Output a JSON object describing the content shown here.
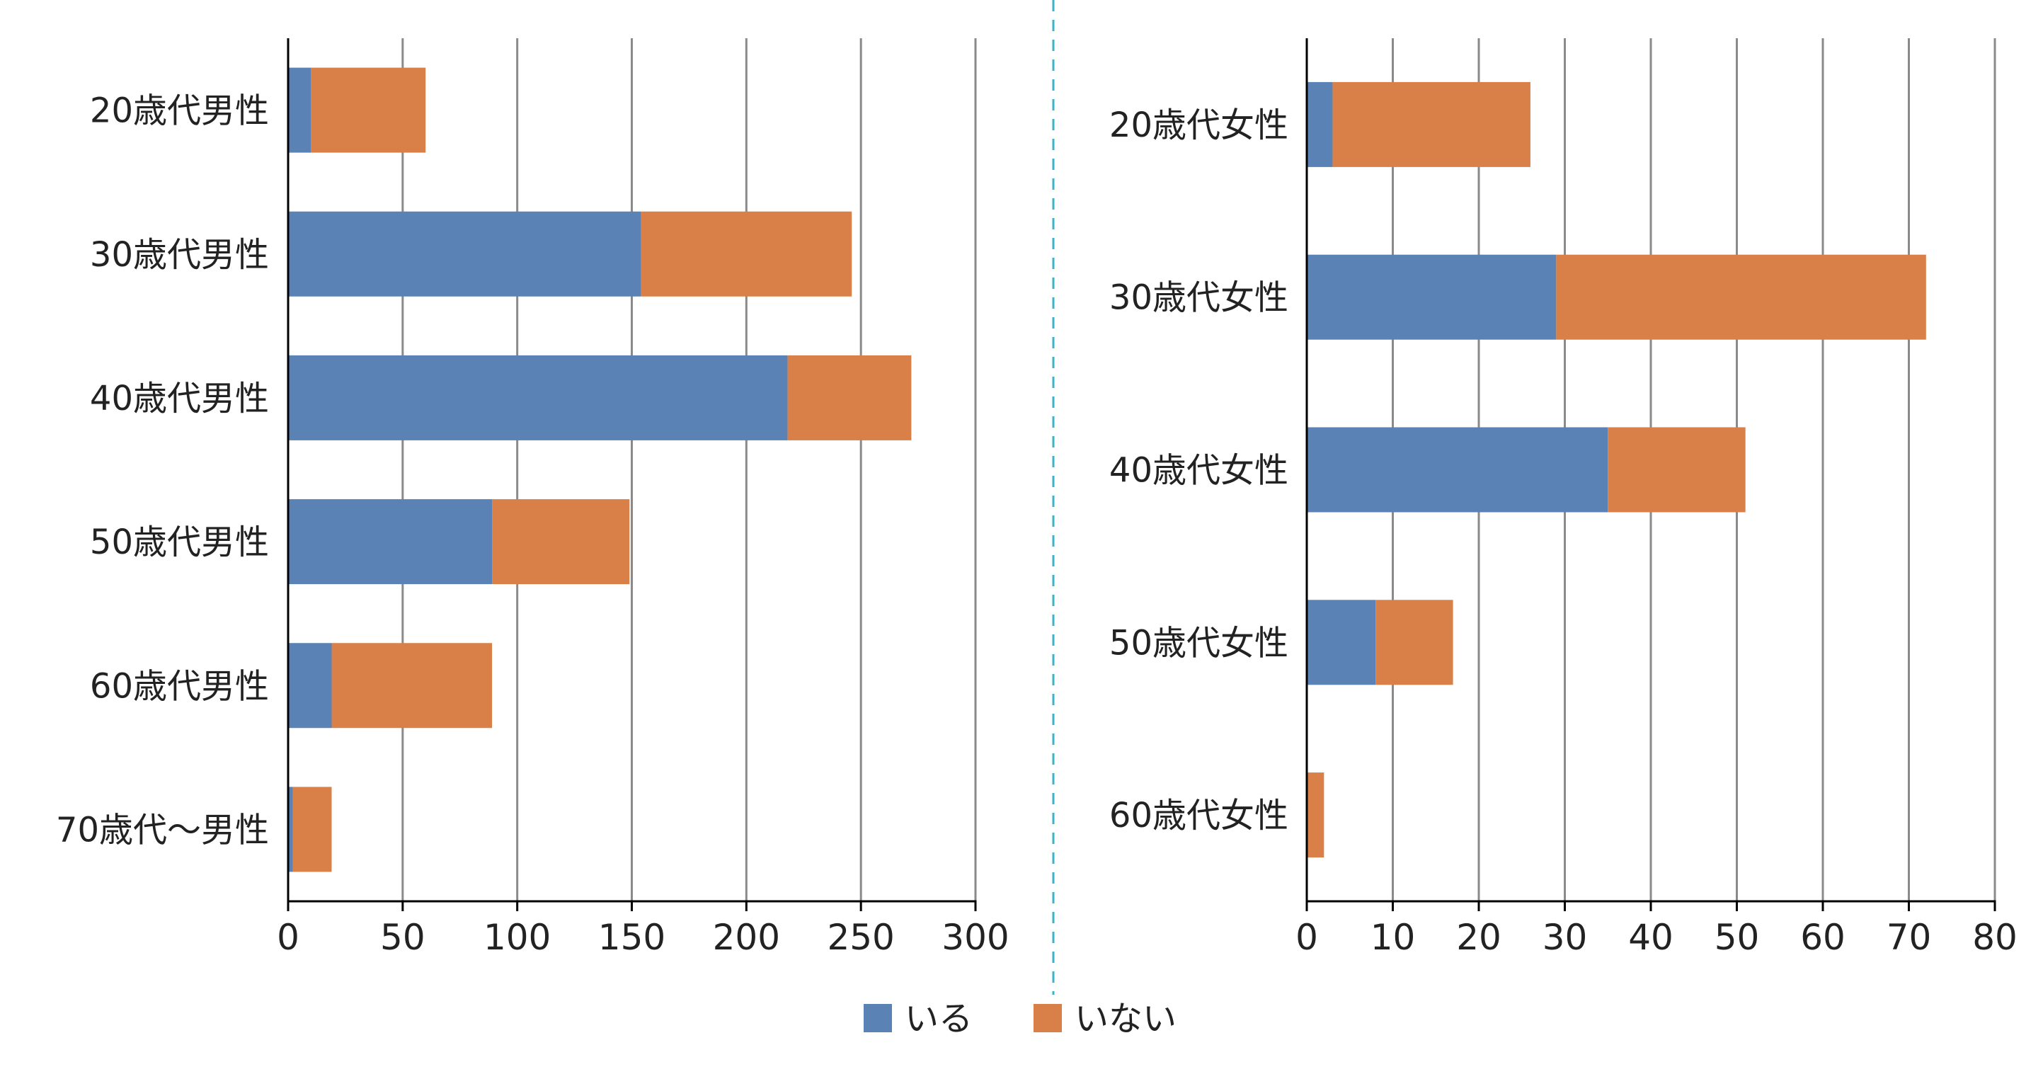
{
  "chart_data": [
    {
      "type": "bar",
      "orientation": "horizontal",
      "stacked": true,
      "categories": [
        "20歳代男性",
        "30歳代男性",
        "40歳代男性",
        "50歳代男性",
        "60歳代男性",
        "70歳代～男性"
      ],
      "series": [
        {
          "name": "いる",
          "values": [
            10,
            154,
            218,
            89,
            19,
            2
          ]
        },
        {
          "name": "いない",
          "values": [
            50,
            92,
            54,
            60,
            70,
            17
          ]
        }
      ],
      "xlim": [
        0,
        300
      ],
      "xticks": [
        0,
        50,
        100,
        150,
        200,
        250,
        300
      ],
      "grid": "vertical"
    },
    {
      "type": "bar",
      "orientation": "horizontal",
      "stacked": true,
      "categories": [
        "20歳代女性",
        "30歳代女性",
        "40歳代女性",
        "50歳代女性",
        "60歳代女性"
      ],
      "series": [
        {
          "name": "いる",
          "values": [
            3,
            29,
            35,
            8,
            0
          ]
        },
        {
          "name": "いない",
          "values": [
            23,
            43,
            16,
            9,
            2
          ]
        }
      ],
      "xlim": [
        0,
        80
      ],
      "xticks": [
        0,
        10,
        20,
        30,
        40,
        50,
        60,
        70,
        80
      ],
      "grid": "vertical"
    }
  ],
  "legend": {
    "placement": "bottom-center",
    "items": [
      {
        "label": "いる",
        "color": "#5a82b4"
      },
      {
        "label": "いない",
        "color": "#d98048"
      }
    ]
  },
  "colors": {
    "series": [
      "#5a82b4",
      "#d98048"
    ],
    "grid": "#8a8a8a",
    "axis": "#000000",
    "divider": "#3bb3c8"
  }
}
